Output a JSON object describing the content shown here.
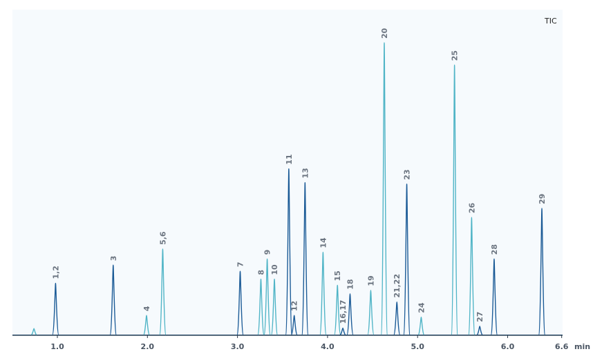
{
  "chart_data": {
    "type": "line",
    "title": "TIC",
    "xlabel": "",
    "ylabel": "",
    "x_unit": "min",
    "xlim": [
      0.5,
      6.6
    ],
    "ylim": [
      0,
      100
    ],
    "x_ticks": [
      "1.0",
      "2.0",
      "3.0",
      "4.0",
      "5.0",
      "6.0",
      "6.6"
    ],
    "grid": false,
    "colors": {
      "background": "#f6fafd",
      "teal": "#4fb4c6",
      "blue": "#1a5a96",
      "axis": "#2a3a4a"
    },
    "peaks": [
      {
        "label": "",
        "rt": 0.74,
        "height": 2.3,
        "tone": "teal"
      },
      {
        "label": "1,2",
        "rt": 0.98,
        "height": 17.8,
        "tone": "blue"
      },
      {
        "label": "3",
        "rt": 1.62,
        "height": 24.0,
        "tone": "blue"
      },
      {
        "label": "4",
        "rt": 1.99,
        "height": 6.8,
        "tone": "teal"
      },
      {
        "label": "5,6",
        "rt": 2.17,
        "height": 29.5,
        "tone": "teal"
      },
      {
        "label": "7",
        "rt": 3.03,
        "height": 21.9,
        "tone": "blue"
      },
      {
        "label": "8",
        "rt": 3.26,
        "height": 19.2,
        "tone": "teal"
      },
      {
        "label": "9",
        "rt": 3.33,
        "height": 26.1,
        "tone": "teal"
      },
      {
        "label": "10",
        "rt": 3.41,
        "height": 19.2,
        "tone": "teal"
      },
      {
        "label": "11",
        "rt": 3.57,
        "height": 56.9,
        "tone": "blue"
      },
      {
        "label": "12",
        "rt": 3.63,
        "height": 6.8,
        "tone": "blue"
      },
      {
        "label": "13",
        "rt": 3.75,
        "height": 52.2,
        "tone": "blue"
      },
      {
        "label": "14",
        "rt": 3.95,
        "height": 28.4,
        "tone": "teal"
      },
      {
        "label": "15",
        "rt": 4.11,
        "height": 17.1,
        "tone": "teal"
      },
      {
        "label": "16,17",
        "rt": 4.17,
        "height": 2.5,
        "tone": "blue"
      },
      {
        "label": "18",
        "rt": 4.25,
        "height": 14.2,
        "tone": "blue"
      },
      {
        "label": "19",
        "rt": 4.48,
        "height": 15.4,
        "tone": "teal"
      },
      {
        "label": "20",
        "rt": 4.63,
        "height": 100,
        "tone": "teal"
      },
      {
        "label": "21,22",
        "rt": 4.77,
        "height": 11.4,
        "tone": "blue"
      },
      {
        "label": "23",
        "rt": 4.88,
        "height": 51.7,
        "tone": "blue"
      },
      {
        "label": "24",
        "rt": 5.04,
        "height": 6.2,
        "tone": "teal"
      },
      {
        "label": "25",
        "rt": 5.41,
        "height": 92.4,
        "tone": "teal"
      },
      {
        "label": "26",
        "rt": 5.6,
        "height": 40.3,
        "tone": "teal"
      },
      {
        "label": "27",
        "rt": 5.69,
        "height": 3.1,
        "tone": "blue"
      },
      {
        "label": "28",
        "rt": 5.85,
        "height": 26.1,
        "tone": "blue"
      },
      {
        "label": "29",
        "rt": 6.38,
        "height": 43.4,
        "tone": "blue"
      }
    ]
  }
}
